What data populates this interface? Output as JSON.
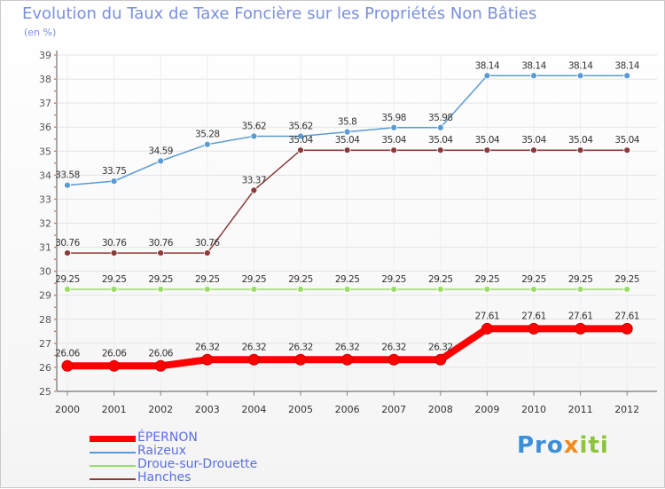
{
  "chart_data": {
    "type": "line",
    "title": "Evolution du Taux de Taxe Foncière sur les Propriétés Non Bâties",
    "ylabel": "(en %)",
    "xlabel": "",
    "ylim": [
      25,
      39
    ],
    "yticks": [
      "25",
      "26",
      "27",
      "28",
      "29",
      "30",
      "31",
      "32",
      "33",
      "34",
      "35",
      "36",
      "37",
      "38",
      "39"
    ],
    "categories": [
      "2000",
      "2001",
      "2002",
      "2003",
      "2004",
      "2005",
      "2006",
      "2007",
      "2008",
      "2009",
      "2010",
      "2011",
      "2012"
    ],
    "series": [
      {
        "name": "ÉPERNON",
        "color": "#ff0000",
        "values": [
          26.06,
          26.06,
          26.06,
          26.32,
          26.32,
          26.32,
          26.32,
          26.32,
          26.32,
          27.61,
          27.61,
          27.61,
          27.61
        ],
        "labels": [
          "26.06",
          "26.06",
          "26.06",
          "26.32",
          "26.32",
          "26.32",
          "26.32",
          "26.32",
          "26.32",
          "27.61",
          "27.61",
          "27.61",
          "27.61"
        ]
      },
      {
        "name": "Raizeux",
        "color": "#5a9bd5",
        "values": [
          33.58,
          33.75,
          34.59,
          35.28,
          35.62,
          35.62,
          35.8,
          35.98,
          35.98,
          38.14,
          38.14,
          38.14,
          38.14
        ],
        "labels": [
          "33.58",
          "33.75",
          "34.59",
          "35.28",
          "35.62",
          "35.62",
          "35.8",
          "35.98",
          "35.98",
          "38.14",
          "38.14",
          "38.14",
          "38.14"
        ]
      },
      {
        "name": "Droue-sur-Drouette",
        "color": "#99dd66",
        "values": [
          29.25,
          29.25,
          29.25,
          29.25,
          29.25,
          29.25,
          29.25,
          29.25,
          29.25,
          29.25,
          29.25,
          29.25,
          29.25
        ],
        "labels": [
          "29.25",
          "29.25",
          "29.25",
          "29.25",
          "29.25",
          "29.25",
          "29.25",
          "29.25",
          "29.25",
          "29.25",
          "29.25",
          "29.25",
          "29.25"
        ]
      },
      {
        "name": "Hanches",
        "color": "#8b3a3a",
        "values": [
          30.76,
          30.76,
          30.76,
          30.76,
          33.37,
          35.04,
          35.04,
          35.04,
          35.04,
          35.04,
          35.04,
          35.04,
          35.04
        ],
        "labels": [
          "30.76",
          "30.76",
          "30.76",
          "30.76",
          "33.37",
          "35.04",
          "35.04",
          "35.04",
          "35.04",
          "35.04",
          "35.04",
          "35.04",
          "35.04"
        ]
      }
    ],
    "legend_position": "bottom-left",
    "grid": true
  },
  "legend": {
    "items": [
      "ÉPERNON",
      "Raizeux",
      "Droue-sur-Drouette",
      "Hanches"
    ]
  },
  "brand": {
    "part1": "Pro",
    "part2": "x",
    "part3": "iti"
  }
}
